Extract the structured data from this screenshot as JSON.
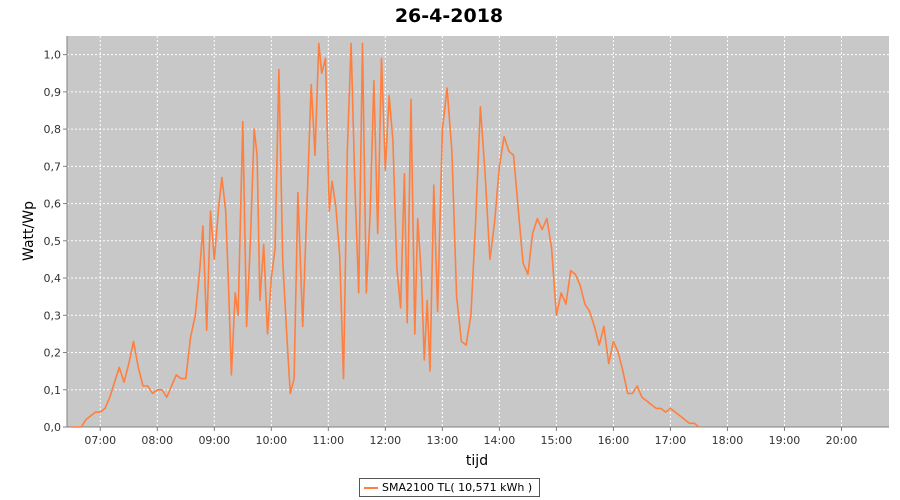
{
  "chart_data": {
    "type": "line",
    "title": "26-4-2018",
    "xlabel": "tijd",
    "ylabel": "Watt/Wp",
    "x_ticks": [
      "07:00",
      "08:00",
      "09:00",
      "10:00",
      "11:00",
      "12:00",
      "13:00",
      "14:00",
      "15:00",
      "16:00",
      "17:00",
      "18:00",
      "19:00",
      "20:00"
    ],
    "y_ticks": [
      "0,0",
      "0,1",
      "0,2",
      "0,3",
      "0,4",
      "0,5",
      "0,6",
      "0,7",
      "0,8",
      "0,9",
      "1,0"
    ],
    "xlim": [
      "06:25",
      "20:50"
    ],
    "ylim": [
      0,
      1.05
    ],
    "grid": true,
    "legend_position": "bottom-center",
    "series": [
      {
        "name": "SMA2100 TL( 10,571 kWh )",
        "color": "#ff7f3f",
        "points": [
          [
            "06:30",
            0.0
          ],
          [
            "06:40",
            0.0
          ],
          [
            "06:45",
            0.02
          ],
          [
            "06:50",
            0.03
          ],
          [
            "06:55",
            0.04
          ],
          [
            "07:00",
            0.04
          ],
          [
            "07:05",
            0.05
          ],
          [
            "07:10",
            0.08
          ],
          [
            "07:15",
            0.12
          ],
          [
            "07:20",
            0.16
          ],
          [
            "07:25",
            0.12
          ],
          [
            "07:30",
            0.17
          ],
          [
            "07:35",
            0.23
          ],
          [
            "07:40",
            0.16
          ],
          [
            "07:45",
            0.11
          ],
          [
            "07:50",
            0.11
          ],
          [
            "07:55",
            0.09
          ],
          [
            "08:00",
            0.1
          ],
          [
            "08:05",
            0.1
          ],
          [
            "08:10",
            0.08
          ],
          [
            "08:15",
            0.11
          ],
          [
            "08:20",
            0.14
          ],
          [
            "08:25",
            0.13
          ],
          [
            "08:30",
            0.13
          ],
          [
            "08:35",
            0.24
          ],
          [
            "08:40",
            0.3
          ],
          [
            "08:45",
            0.43
          ],
          [
            "08:48",
            0.54
          ],
          [
            "08:52",
            0.26
          ],
          [
            "08:56",
            0.58
          ],
          [
            "09:00",
            0.45
          ],
          [
            "09:05",
            0.6
          ],
          [
            "09:08",
            0.67
          ],
          [
            "09:12",
            0.58
          ],
          [
            "09:15",
            0.38
          ],
          [
            "09:18",
            0.14
          ],
          [
            "09:22",
            0.36
          ],
          [
            "09:25",
            0.3
          ],
          [
            "09:30",
            0.82
          ],
          [
            "09:34",
            0.27
          ],
          [
            "09:38",
            0.5
          ],
          [
            "09:42",
            0.8
          ],
          [
            "09:45",
            0.73
          ],
          [
            "09:48",
            0.34
          ],
          [
            "09:52",
            0.49
          ],
          [
            "09:56",
            0.25
          ],
          [
            "10:00",
            0.4
          ],
          [
            "10:04",
            0.48
          ],
          [
            "10:08",
            0.96
          ],
          [
            "10:12",
            0.45
          ],
          [
            "10:16",
            0.26
          ],
          [
            "10:20",
            0.09
          ],
          [
            "10:24",
            0.13
          ],
          [
            "10:28",
            0.63
          ],
          [
            "10:33",
            0.27
          ],
          [
            "10:38",
            0.63
          ],
          [
            "10:42",
            0.92
          ],
          [
            "10:46",
            0.73
          ],
          [
            "10:50",
            1.03
          ],
          [
            "10:53",
            0.95
          ],
          [
            "10:57",
            0.99
          ],
          [
            "11:01",
            0.58
          ],
          [
            "11:04",
            0.66
          ],
          [
            "11:08",
            0.59
          ],
          [
            "11:12",
            0.46
          ],
          [
            "11:16",
            0.13
          ],
          [
            "11:20",
            0.74
          ],
          [
            "11:24",
            1.03
          ],
          [
            "11:28",
            0.65
          ],
          [
            "11:32",
            0.36
          ],
          [
            "11:36",
            1.03
          ],
          [
            "11:40",
            0.36
          ],
          [
            "11:44",
            0.57
          ],
          [
            "11:48",
            0.93
          ],
          [
            "11:52",
            0.52
          ],
          [
            "11:56",
            0.99
          ],
          [
            "12:00",
            0.69
          ],
          [
            "12:04",
            0.89
          ],
          [
            "12:08",
            0.77
          ],
          [
            "12:12",
            0.43
          ],
          [
            "12:16",
            0.32
          ],
          [
            "12:20",
            0.68
          ],
          [
            "12:23",
            0.28
          ],
          [
            "12:27",
            0.88
          ],
          [
            "12:31",
            0.25
          ],
          [
            "12:34",
            0.56
          ],
          [
            "12:38",
            0.4
          ],
          [
            "12:41",
            0.18
          ],
          [
            "12:44",
            0.34
          ],
          [
            "12:47",
            0.15
          ],
          [
            "12:51",
            0.65
          ],
          [
            "12:55",
            0.31
          ],
          [
            "13:00",
            0.8
          ],
          [
            "13:05",
            0.91
          ],
          [
            "13:10",
            0.74
          ],
          [
            "13:15",
            0.35
          ],
          [
            "13:20",
            0.23
          ],
          [
            "13:25",
            0.22
          ],
          [
            "13:30",
            0.3
          ],
          [
            "13:35",
            0.55
          ],
          [
            "13:40",
            0.86
          ],
          [
            "13:45",
            0.68
          ],
          [
            "13:50",
            0.45
          ],
          [
            "13:55",
            0.55
          ],
          [
            "14:00",
            0.7
          ],
          [
            "14:05",
            0.78
          ],
          [
            "14:10",
            0.74
          ],
          [
            "14:15",
            0.73
          ],
          [
            "14:20",
            0.58
          ],
          [
            "14:25",
            0.44
          ],
          [
            "14:30",
            0.41
          ],
          [
            "14:35",
            0.52
          ],
          [
            "14:40",
            0.56
          ],
          [
            "14:45",
            0.53
          ],
          [
            "14:50",
            0.56
          ],
          [
            "14:55",
            0.48
          ],
          [
            "15:00",
            0.3
          ],
          [
            "15:05",
            0.36
          ],
          [
            "15:10",
            0.33
          ],
          [
            "15:15",
            0.42
          ],
          [
            "15:20",
            0.41
          ],
          [
            "15:25",
            0.38
          ],
          [
            "15:30",
            0.33
          ],
          [
            "15:35",
            0.31
          ],
          [
            "15:40",
            0.27
          ],
          [
            "15:45",
            0.22
          ],
          [
            "15:50",
            0.27
          ],
          [
            "15:55",
            0.17
          ],
          [
            "16:00",
            0.23
          ],
          [
            "16:05",
            0.2
          ],
          [
            "16:10",
            0.15
          ],
          [
            "16:15",
            0.09
          ],
          [
            "16:20",
            0.09
          ],
          [
            "16:25",
            0.11
          ],
          [
            "16:30",
            0.08
          ],
          [
            "16:35",
            0.07
          ],
          [
            "16:40",
            0.06
          ],
          [
            "16:45",
            0.05
          ],
          [
            "16:50",
            0.05
          ],
          [
            "16:55",
            0.04
          ],
          [
            "17:00",
            0.05
          ],
          [
            "17:05",
            0.04
          ],
          [
            "17:10",
            0.03
          ],
          [
            "17:15",
            0.02
          ],
          [
            "17:20",
            0.01
          ],
          [
            "17:25",
            0.01
          ],
          [
            "17:30",
            0.0
          ]
        ]
      }
    ]
  }
}
